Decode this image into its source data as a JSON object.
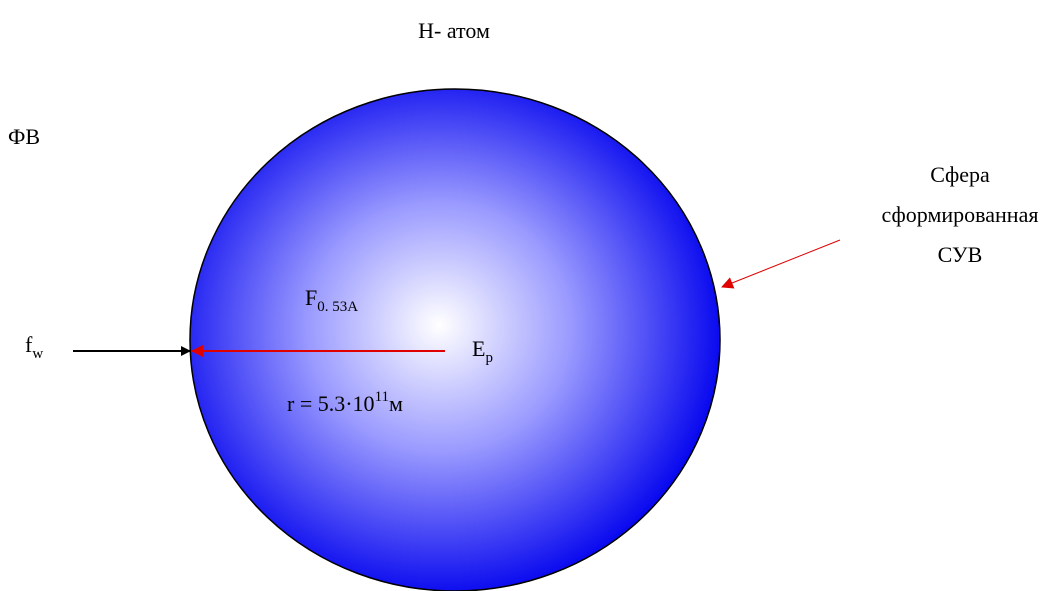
{
  "title": "H- атом",
  "labels": {
    "field": "ФВ",
    "sphere_caption": [
      "Сфера",
      "сформированная",
      "СУВ"
    ],
    "force": {
      "main": "f",
      "sub": "w"
    },
    "flux": {
      "main": "F",
      "sub": "0. 53A"
    },
    "energy": {
      "main": "E",
      "sub": "p"
    },
    "radius": {
      "main": "r = 5.3·10",
      "sup": "11",
      "unit": "м"
    }
  }
}
